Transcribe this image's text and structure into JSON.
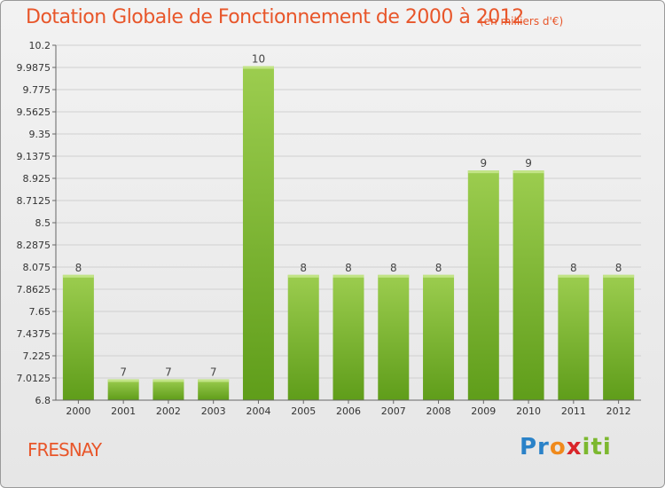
{
  "header": {
    "title": "Dotation Globale de Fonctionnement de 2000 à 2012",
    "units": "(en milliers d'€)"
  },
  "footer": {
    "commune": "FRESNAY",
    "logo": [
      "Pr",
      "o",
      "x",
      "iti"
    ]
  },
  "colors": {
    "accent": "#e8562a",
    "bar_top": "#9ccd4f",
    "bar_bottom": "#5f9d1a"
  },
  "chart_data": {
    "type": "bar",
    "title": "Dotation Globale de Fonctionnement de 2000 à 2012",
    "subtitle": "(en milliers d'€)",
    "categories": [
      "2000",
      "2001",
      "2002",
      "2003",
      "2004",
      "2005",
      "2006",
      "2007",
      "2008",
      "2009",
      "2010",
      "2011",
      "2012"
    ],
    "values": [
      8,
      7,
      7,
      7,
      10,
      8,
      8,
      8,
      8,
      9,
      9,
      8,
      8
    ],
    "data_labels": [
      "8",
      "7",
      "7",
      "7",
      "10",
      "8",
      "8",
      "8",
      "8",
      "9",
      "9",
      "8",
      "8"
    ],
    "ylim": [
      6.8,
      10.2
    ],
    "yticks": [
      "6.8",
      "7.0125",
      "7.225",
      "7.4375",
      "7.65",
      "7.8625",
      "8.075",
      "8.2875",
      "8.5",
      "8.7125",
      "8.925",
      "9.1375",
      "9.35",
      "9.5625",
      "9.775",
      "9.9875",
      "10.2"
    ],
    "grid": true
  }
}
